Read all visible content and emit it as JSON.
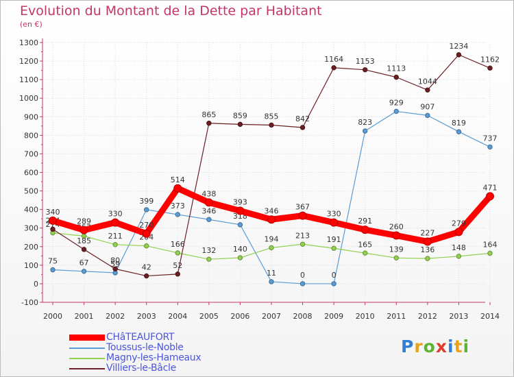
{
  "title": "Evolution du Montant de la Dette par Habitant",
  "subtitle": "(en €)",
  "logo": {
    "letters": [
      {
        "char": "P",
        "color": "#2f7fd6"
      },
      {
        "char": "r",
        "color": "#e8a21c"
      },
      {
        "char": "o",
        "color": "#5bb531"
      },
      {
        "char": "x",
        "color": "#e03d2f"
      },
      {
        "char": "i",
        "color": "#2f7fd6"
      },
      {
        "char": "t",
        "color": "#e8a21c"
      },
      {
        "char": "i",
        "color": "#5bb531"
      }
    ]
  },
  "chart_data": {
    "type": "line",
    "title": "Evolution du Montant de la Dette par Habitant",
    "subtitle": "(en €)",
    "x": [
      "2000",
      "2001",
      "2002",
      "2003",
      "2004",
      "2005",
      "2006",
      "2007",
      "2008",
      "2009",
      "2010",
      "2011",
      "2012",
      "2013",
      "2014"
    ],
    "ylim": [
      -100,
      1300
    ],
    "yticks": [
      "-100",
      "0",
      "100",
      "200",
      "300",
      "400",
      "500",
      "600",
      "700",
      "800",
      "900",
      "1000",
      "1100",
      "1200",
      "1300"
    ],
    "grid": true,
    "legend": "bottom-left",
    "series": [
      {
        "name": "CHâTEAUFORT",
        "color": "#ff0000",
        "values": [
          340,
          289,
          330,
          270,
          514,
          438,
          393,
          346,
          367,
          330,
          291,
          260,
          227,
          279,
          471
        ]
      },
      {
        "name": "Toussus-le-Noble",
        "color": "#5b9bd5",
        "values": [
          75,
          67,
          59,
          399,
          373,
          346,
          318,
          11,
          0,
          0,
          823,
          929,
          907,
          819,
          737
        ]
      },
      {
        "name": "Magny-les-Hameaux",
        "color": "#92d050",
        "values": [
          274,
          257,
          211,
          204,
          166,
          132,
          140,
          194,
          213,
          191,
          165,
          139,
          136,
          148,
          164
        ]
      },
      {
        "name": "Villiers-le-Bâcle",
        "color": "#6b1f24",
        "values": [
          294,
          185,
          80,
          42,
          52,
          865,
          859,
          855,
          842,
          1164,
          1153,
          1113,
          1044,
          1234,
          1162
        ]
      }
    ]
  }
}
